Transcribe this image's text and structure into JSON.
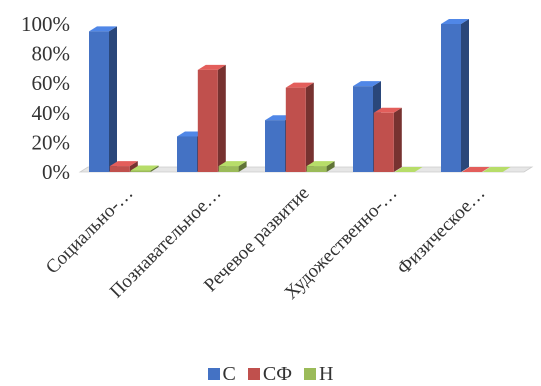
{
  "chart_data": {
    "type": "bar",
    "style": "3d-clustered-column",
    "categories": [
      "Социально-…",
      "Познавательное…",
      "Речевое развитие",
      "Художественно-…",
      "Физическое…"
    ],
    "series": [
      {
        "name": "С",
        "values": [
          95,
          24,
          35,
          58,
          100
        ],
        "color": "#4472C4"
      },
      {
        "name": "СФ",
        "values": [
          4,
          69,
          57,
          40,
          0
        ],
        "color": "#C0504D"
      },
      {
        "name": "Н",
        "values": [
          1,
          4,
          4,
          0,
          0
        ],
        "color": "#9BBB59"
      }
    ],
    "yticks": [
      "0%",
      "20%",
      "40%",
      "60%",
      "80%",
      "100%"
    ],
    "ylim": [
      0,
      100
    ],
    "legend_position": "bottom",
    "grid": false
  }
}
